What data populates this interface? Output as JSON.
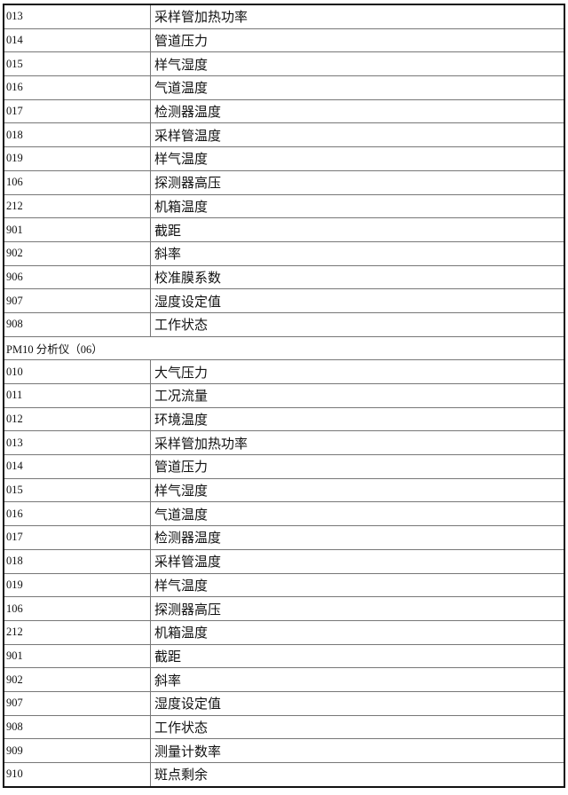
{
  "section1_rows": [
    {
      "code": "013",
      "name": "采样管加热功率"
    },
    {
      "code": "014",
      "name": "管道压力"
    },
    {
      "code": "015",
      "name": "样气湿度"
    },
    {
      "code": "016",
      "name": "气道温度"
    },
    {
      "code": "017",
      "name": "检测器温度"
    },
    {
      "code": "018",
      "name": "采样管温度"
    },
    {
      "code": "019",
      "name": "样气温度"
    },
    {
      "code": "106",
      "name": "探测器高压"
    },
    {
      "code": "212",
      "name": "机箱温度"
    },
    {
      "code": "901",
      "name": "截距"
    },
    {
      "code": "902",
      "name": "斜率"
    },
    {
      "code": "906",
      "name": "校准膜系数"
    },
    {
      "code": "907",
      "name": "湿度设定值"
    },
    {
      "code": "908",
      "name": "工作状态"
    }
  ],
  "section2_title": "PM10 分析仪（06）",
  "section2_rows": [
    {
      "code": "010",
      "name": "大气压力"
    },
    {
      "code": "011",
      "name": "工况流量"
    },
    {
      "code": "012",
      "name": "环境温度"
    },
    {
      "code": "013",
      "name": "采样管加热功率"
    },
    {
      "code": "014",
      "name": "管道压力"
    },
    {
      "code": "015",
      "name": "样气湿度"
    },
    {
      "code": "016",
      "name": "气道温度"
    },
    {
      "code": "017",
      "name": "检测器温度"
    },
    {
      "code": "018",
      "name": "采样管温度"
    },
    {
      "code": "019",
      "name": "样气温度"
    },
    {
      "code": "106",
      "name": "探测器高压"
    },
    {
      "code": "212",
      "name": "机箱温度"
    },
    {
      "code": "901",
      "name": "截距"
    },
    {
      "code": "902",
      "name": "斜率"
    },
    {
      "code": "907",
      "name": "湿度设定值"
    },
    {
      "code": "908",
      "name": "工作状态"
    },
    {
      "code": "909",
      "name": "测量计数率"
    },
    {
      "code": "910",
      "name": "斑点剩余"
    }
  ]
}
